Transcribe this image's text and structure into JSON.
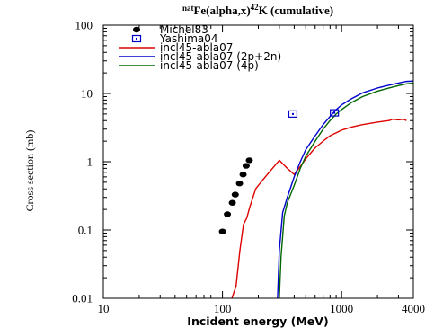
{
  "chart_data": {
    "type": "scatter",
    "title": {
      "prefix_sup": "nat",
      "main1": "Fe(alpha,x)",
      "mid_sup": "42",
      "main2": "K  (cumulative)"
    },
    "xlabel": "Incident energy (MeV)",
    "ylabel": "Cross section (mb)",
    "xscale": "log",
    "yscale": "log",
    "xlim": [
      10,
      4000
    ],
    "ylim": [
      0.01,
      100
    ],
    "xticks": [
      {
        "value": 10,
        "label": "10"
      },
      {
        "value": 100,
        "label": "100"
      },
      {
        "value": 1000,
        "label": "1000"
      },
      {
        "value": 4000,
        "label": "4000"
      }
    ],
    "yticks": [
      {
        "value": 0.01,
        "label": "0.01"
      },
      {
        "value": 0.1,
        "label": "0.1"
      },
      {
        "value": 1,
        "label": "1"
      },
      {
        "value": 10,
        "label": "10"
      },
      {
        "value": 100,
        "label": "100"
      }
    ],
    "legend_position": "top-left",
    "series": [
      {
        "name": "Michel83",
        "kind": "points",
        "marker": "filled-circle",
        "color": "#000000",
        "points": [
          [
            100,
            0.095
          ],
          [
            110,
            0.17
          ],
          [
            121,
            0.25
          ],
          [
            128,
            0.33
          ],
          [
            139,
            0.48
          ],
          [
            149,
            0.65
          ],
          [
            158,
            0.87
          ],
          [
            168,
            1.05
          ]
        ]
      },
      {
        "name": "Yashima04",
        "kind": "points",
        "marker": "open-square-dot",
        "color": "#0000cc",
        "points": [
          [
            390,
            5.0
          ],
          [
            870,
            5.2
          ]
        ]
      },
      {
        "name": "incl45-abla07",
        "kind": "line",
        "color": "#dd0000",
        "points": [
          [
            120,
            0.01
          ],
          [
            130,
            0.015
          ],
          [
            140,
            0.05
          ],
          [
            150,
            0.12
          ],
          [
            160,
            0.15
          ],
          [
            170,
            0.22
          ],
          [
            190,
            0.4
          ],
          [
            210,
            0.5
          ],
          [
            250,
            0.72
          ],
          [
            300,
            1.05
          ],
          [
            350,
            0.8
          ],
          [
            400,
            0.65
          ],
          [
            450,
            0.85
          ],
          [
            500,
            1.1
          ],
          [
            600,
            1.6
          ],
          [
            700,
            2.0
          ],
          [
            800,
            2.4
          ],
          [
            1000,
            2.9
          ],
          [
            1200,
            3.2
          ],
          [
            1500,
            3.5
          ],
          [
            2000,
            3.8
          ],
          [
            2500,
            4.0
          ],
          [
            2700,
            4.2
          ],
          [
            3000,
            4.1
          ],
          [
            3300,
            4.2
          ],
          [
            3500,
            4.0
          ]
        ]
      },
      {
        "name": "incl45-abla07 (2p+2n)",
        "kind": "line",
        "color": "#0000cc",
        "points": [
          [
            290,
            0.01
          ],
          [
            300,
            0.05
          ],
          [
            320,
            0.18
          ],
          [
            350,
            0.3
          ],
          [
            400,
            0.6
          ],
          [
            450,
            1.0
          ],
          [
            500,
            1.5
          ],
          [
            600,
            2.4
          ],
          [
            700,
            3.5
          ],
          [
            800,
            4.6
          ],
          [
            900,
            5.8
          ],
          [
            1000,
            6.8
          ],
          [
            1200,
            8.3
          ],
          [
            1500,
            10.2
          ],
          [
            2000,
            12.0
          ],
          [
            2500,
            13.2
          ],
          [
            3000,
            14.2
          ],
          [
            3500,
            15.0
          ],
          [
            4000,
            15.2
          ]
        ]
      },
      {
        "name": "incl45-abla07 (4p)",
        "kind": "line",
        "color": "#006600",
        "points": [
          [
            300,
            0.01
          ],
          [
            310,
            0.04
          ],
          [
            330,
            0.16
          ],
          [
            350,
            0.25
          ],
          [
            400,
            0.45
          ],
          [
            450,
            0.8
          ],
          [
            500,
            1.2
          ],
          [
            600,
            2.0
          ],
          [
            700,
            3.0
          ],
          [
            800,
            4.0
          ],
          [
            900,
            5.0
          ],
          [
            1000,
            5.8
          ],
          [
            1200,
            7.3
          ],
          [
            1500,
            9.0
          ],
          [
            2000,
            10.8
          ],
          [
            2500,
            12.0
          ],
          [
            3000,
            13.0
          ],
          [
            3500,
            13.8
          ],
          [
            4000,
            14.2
          ]
        ]
      }
    ]
  }
}
